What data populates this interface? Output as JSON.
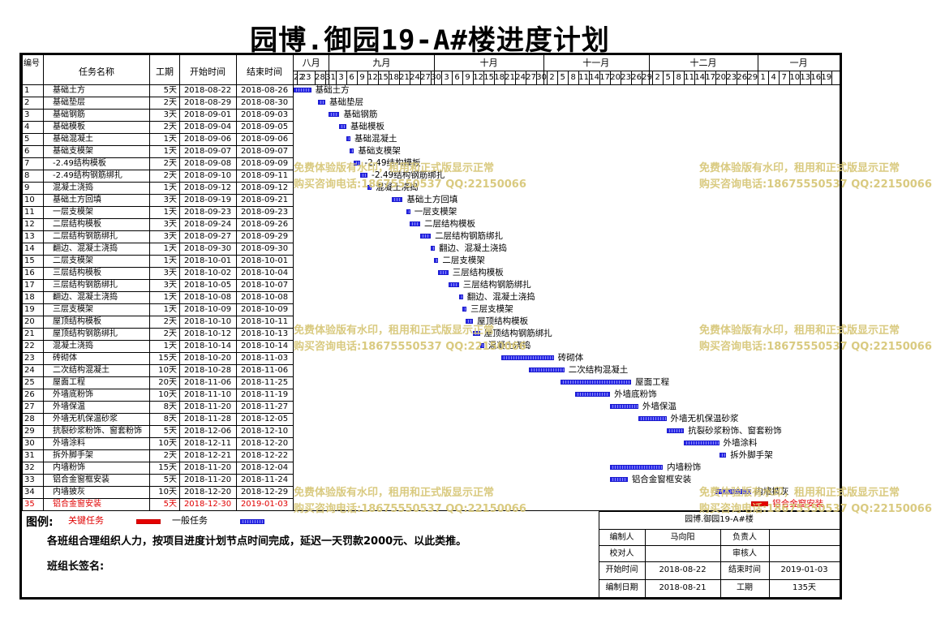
{
  "title": "园博.御园19-A#楼进度计划",
  "columns": {
    "id": "编号",
    "name": "任务名称",
    "dur": "工期",
    "start": "开始时间",
    "end": "结束时间"
  },
  "months": [
    "八月",
    "九月",
    "十月",
    "十一月",
    "十二月",
    "一月"
  ],
  "days": [
    "22",
    "23",
    "28",
    "31",
    "3",
    "6",
    "9",
    "12",
    "15",
    "18",
    "21",
    "24",
    "27",
    "30",
    "3",
    "6",
    "9",
    "12",
    "15",
    "18",
    "21",
    "24",
    "27",
    "30",
    "2",
    "5",
    "8",
    "11",
    "14",
    "17",
    "20",
    "23",
    "26",
    "29",
    "2",
    "5",
    "8",
    "11",
    "14",
    "17",
    "20",
    "23",
    "26",
    "29",
    "1",
    "4",
    "7",
    "10",
    "13",
    "16",
    "19"
  ],
  "tasks": [
    {
      "id": "1",
      "name": "基础土方",
      "dur": "5天",
      "start": "2018-08-22",
      "end": "2018-08-26",
      "label": "基础土方",
      "s": 0,
      "d": 5
    },
    {
      "id": "2",
      "name": "基础垫层",
      "dur": "2天",
      "start": "2018-08-29",
      "end": "2018-08-30",
      "label": "基础垫层",
      "s": 7,
      "d": 2
    },
    {
      "id": "3",
      "name": "基础钢筋",
      "dur": "3天",
      "start": "2018-09-01",
      "end": "2018-09-03",
      "label": "基础钢筋",
      "s": 10,
      "d": 3
    },
    {
      "id": "4",
      "name": "基础模板",
      "dur": "2天",
      "start": "2018-09-04",
      "end": "2018-09-05",
      "label": "基础模板",
      "s": 13,
      "d": 2
    },
    {
      "id": "5",
      "name": "基础混凝土",
      "dur": "1天",
      "start": "2018-09-06",
      "end": "2018-09-06",
      "label": "基础混凝土",
      "s": 15,
      "d": 1
    },
    {
      "id": "6",
      "name": "基础支模架",
      "dur": "1天",
      "start": "2018-09-07",
      "end": "2018-09-07",
      "label": "基础支模架",
      "s": 16,
      "d": 1
    },
    {
      "id": "7",
      "name": "-2.49结构模板",
      "dur": "2天",
      "start": "2018-09-08",
      "end": "2018-09-09",
      "label": "-2.49结构模板",
      "s": 17,
      "d": 2
    },
    {
      "id": "8",
      "name": "-2.49结构钢筋绑扎",
      "dur": "2天",
      "start": "2018-09-10",
      "end": "2018-09-11",
      "label": "-2.49结构钢筋绑扎",
      "s": 19,
      "d": 2
    },
    {
      "id": "9",
      "name": "混凝土浇捣",
      "dur": "1天",
      "start": "2018-09-12",
      "end": "2018-09-12",
      "label": "混凝土浇捣",
      "s": 21,
      "d": 1
    },
    {
      "id": "10",
      "name": "基础土方回填",
      "dur": "3天",
      "start": "2018-09-19",
      "end": "2018-09-21",
      "label": "基础土方回填",
      "s": 28,
      "d": 3
    },
    {
      "id": "11",
      "name": "一层支模架",
      "dur": "1天",
      "start": "2018-09-23",
      "end": "2018-09-23",
      "label": "一层支模架",
      "s": 32,
      "d": 1
    },
    {
      "id": "12",
      "name": "二层结构模板",
      "dur": "3天",
      "start": "2018-09-24",
      "end": "2018-09-26",
      "label": "二层结构模板",
      "s": 33,
      "d": 3
    },
    {
      "id": "13",
      "name": "二层结构钢筋绑扎",
      "dur": "3天",
      "start": "2018-09-27",
      "end": "2018-09-29",
      "label": "二层结构钢筋绑扎",
      "s": 36,
      "d": 3
    },
    {
      "id": "14",
      "name": "翻边、混凝土浇捣",
      "dur": "1天",
      "start": "2018-09-30",
      "end": "2018-09-30",
      "label": "翻边、混凝土浇捣",
      "s": 39,
      "d": 1
    },
    {
      "id": "15",
      "name": "二层支模架",
      "dur": "1天",
      "start": "2018-10-01",
      "end": "2018-10-01",
      "label": "二层支模架",
      "s": 40,
      "d": 1
    },
    {
      "id": "16",
      "name": "三层结构模板",
      "dur": "3天",
      "start": "2018-10-02",
      "end": "2018-10-04",
      "label": "三层结构模板",
      "s": 41,
      "d": 3
    },
    {
      "id": "17",
      "name": "三层结构钢筋绑扎",
      "dur": "3天",
      "start": "2018-10-05",
      "end": "2018-10-07",
      "label": "三层结构钢筋绑扎",
      "s": 44,
      "d": 3
    },
    {
      "id": "18",
      "name": "翻边、混凝土浇捣",
      "dur": "1天",
      "start": "2018-10-08",
      "end": "2018-10-08",
      "label": "翻边、混凝土浇捣",
      "s": 47,
      "d": 1
    },
    {
      "id": "19",
      "name": "三层支模架",
      "dur": "1天",
      "start": "2018-10-09",
      "end": "2018-10-09",
      "label": "三层支模架",
      "s": 48,
      "d": 1
    },
    {
      "id": "20",
      "name": "屋顶结构模板",
      "dur": "2天",
      "start": "2018-10-10",
      "end": "2018-10-11",
      "label": "屋顶结构模板",
      "s": 49,
      "d": 2
    },
    {
      "id": "21",
      "name": "屋顶结构钢筋绑扎",
      "dur": "2天",
      "start": "2018-10-12",
      "end": "2018-10-13",
      "label": "屋顶结构钢筋绑扎",
      "s": 51,
      "d": 2
    },
    {
      "id": "22",
      "name": "混凝土浇捣",
      "dur": "1天",
      "start": "2018-10-14",
      "end": "2018-10-14",
      "label": "混凝土浇捣",
      "s": 53,
      "d": 1
    },
    {
      "id": "23",
      "name": "砖砌体",
      "dur": "15天",
      "start": "2018-10-20",
      "end": "2018-11-03",
      "label": "砖砌体",
      "s": 59,
      "d": 15
    },
    {
      "id": "24",
      "name": "二次结构混凝土",
      "dur": "10天",
      "start": "2018-10-28",
      "end": "2018-11-06",
      "label": "二次结构混凝土",
      "s": 67,
      "d": 10
    },
    {
      "id": "25",
      "name": "屋面工程",
      "dur": "20天",
      "start": "2018-11-06",
      "end": "2018-11-25",
      "label": "屋面工程",
      "s": 76,
      "d": 20
    },
    {
      "id": "26",
      "name": "外墙底粉饰",
      "dur": "10天",
      "start": "2018-11-10",
      "end": "2018-11-19",
      "label": "外墙底粉饰",
      "s": 80,
      "d": 10
    },
    {
      "id": "27",
      "name": "外墙保温",
      "dur": "8天",
      "start": "2018-11-20",
      "end": "2018-11-27",
      "label": "外墙保温",
      "s": 90,
      "d": 8
    },
    {
      "id": "28",
      "name": "外墙无机保温砂浆",
      "dur": "8天",
      "start": "2018-11-28",
      "end": "2018-12-05",
      "label": "外墙无机保温砂浆",
      "s": 98,
      "d": 8
    },
    {
      "id": "29",
      "name": "抗裂砂浆粉饰、窗套粉饰",
      "dur": "5天",
      "start": "2018-12-06",
      "end": "2018-12-10",
      "label": "抗裂砂浆粉饰、窗套粉饰",
      "s": 106,
      "d": 5
    },
    {
      "id": "30",
      "name": "外墙涂料",
      "dur": "10天",
      "start": "2018-12-11",
      "end": "2018-12-20",
      "label": "外墙涂料",
      "s": 111,
      "d": 10
    },
    {
      "id": "31",
      "name": "拆外脚手架",
      "dur": "2天",
      "start": "2018-12-21",
      "end": "2018-12-22",
      "label": "拆外脚手架",
      "s": 121,
      "d": 2
    },
    {
      "id": "32",
      "name": "内墙粉饰",
      "dur": "15天",
      "start": "2018-11-20",
      "end": "2018-12-04",
      "label": "内墙粉饰",
      "s": 90,
      "d": 15
    },
    {
      "id": "33",
      "name": "铝合金窗框安装",
      "dur": "5天",
      "start": "2018-11-20",
      "end": "2018-11-24",
      "label": "铝合金窗框安装",
      "s": 90,
      "d": 5
    },
    {
      "id": "34",
      "name": "内墙披灰",
      "dur": "10天",
      "start": "2018-12-20",
      "end": "2018-12-29",
      "label": "内墙披灰",
      "s": 120,
      "d": 10
    },
    {
      "id": "35",
      "name": "铝合金窗安装",
      "dur": "5天",
      "start": "2018-12-30",
      "end": "2019-01-03",
      "label": "铝合金窗安装",
      "s": 130,
      "d": 5,
      "critical": true
    }
  ],
  "legend": {
    "title": "图例:",
    "critical": "关键任务",
    "normal": "一般任务",
    "critical_color": "#e60000",
    "normal_color": "#2a2ae8"
  },
  "notice": "各班组合理组织人力，按项目进度计划节点时间完成，延迟一天罚款2000元、以此类推。",
  "sign": "班组长签名:",
  "info": {
    "project": "园博.御园19-A#楼",
    "editor_label": "编制人",
    "editor": "马向阳",
    "owner_label": "负责人",
    "owner": "",
    "checker_label": "校对人",
    "checker": "",
    "reviewer_label": "审核人",
    "reviewer": "",
    "start_label": "开始时间",
    "start": "2018-08-22",
    "end_label": "结束时间",
    "end": "2019-01-03",
    "date_label": "编制日期",
    "date": "2018-08-21",
    "dur_label": "工期",
    "dur": "135天"
  },
  "watermark": {
    "line1": "免费体验版有水印，租用和正式版显示正常",
    "line2": "购买咨询电话:18675550537 QQ:22150066"
  }
}
